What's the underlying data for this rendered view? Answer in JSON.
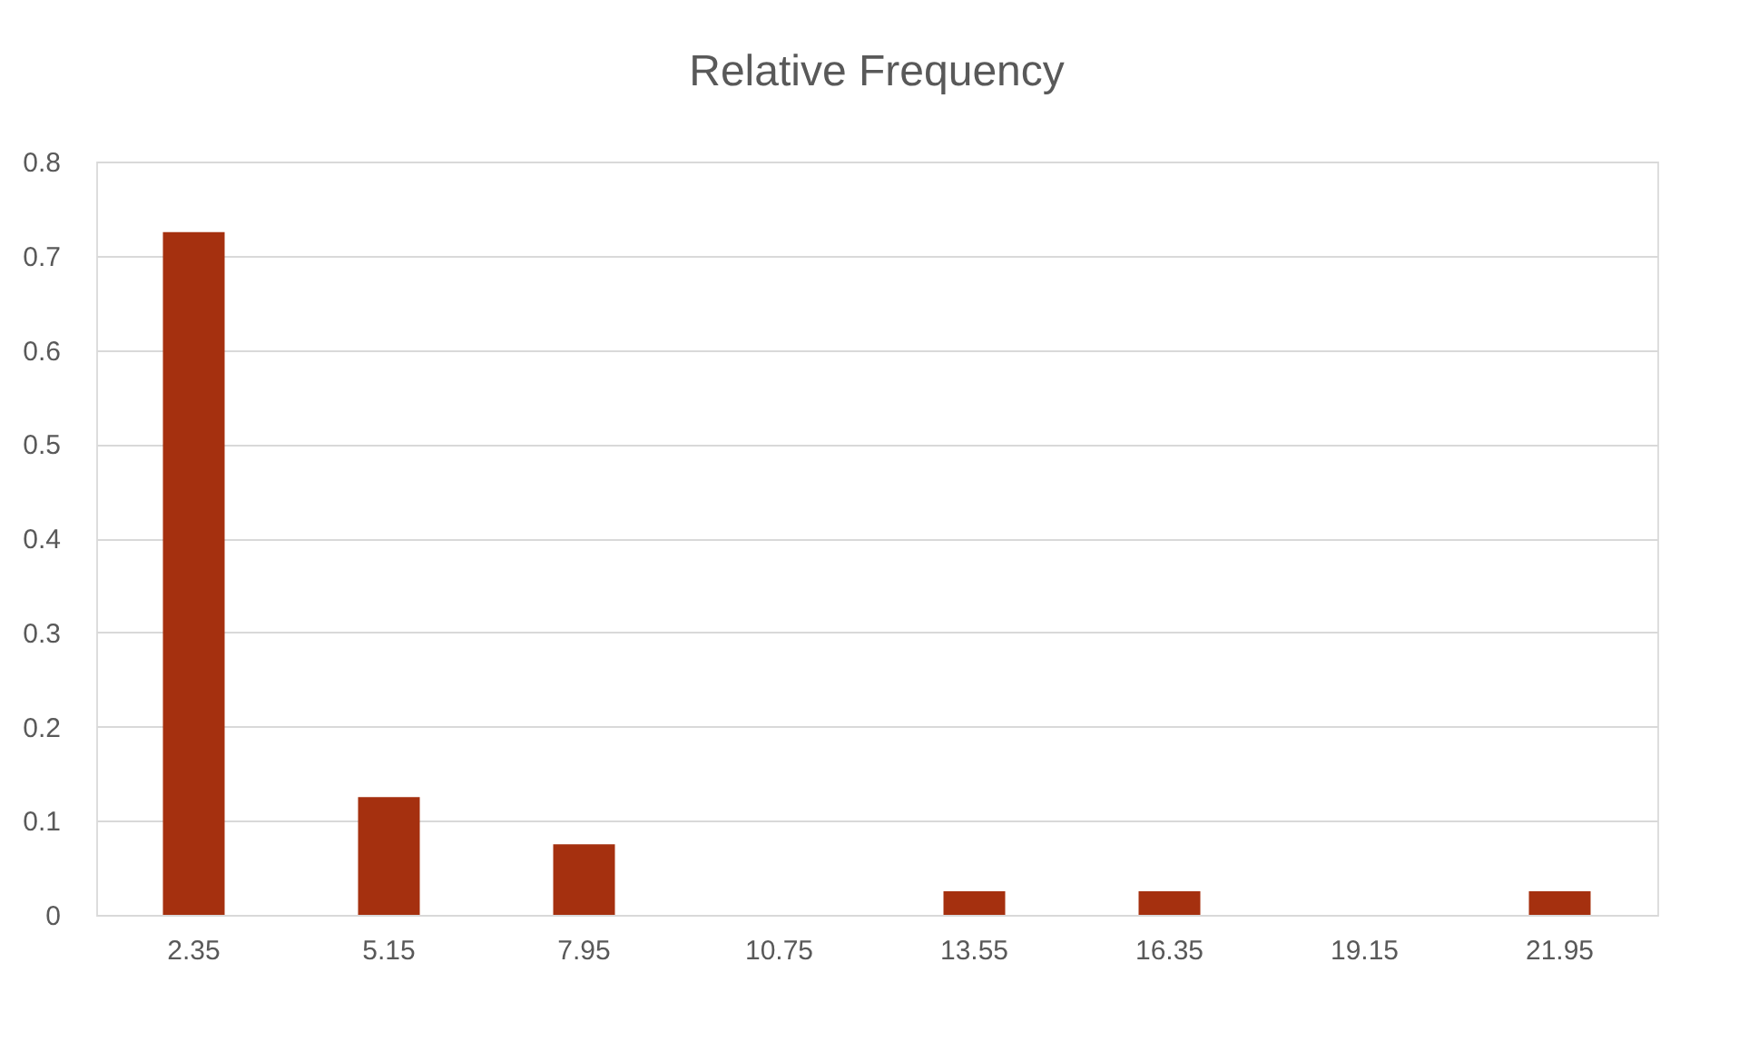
{
  "chart_data": {
    "type": "bar",
    "title": "Relative Frequency",
    "categories": [
      "2.35",
      "5.15",
      "7.95",
      "10.75",
      "13.55",
      "16.35",
      "19.15",
      "21.95"
    ],
    "values": [
      0.725,
      0.125,
      0.075,
      0,
      0.025,
      0.025,
      0,
      0.025
    ],
    "color": "#a5300f",
    "ylim": [
      0,
      0.8
    ],
    "yticks": [
      0,
      0.1,
      0.2,
      0.3,
      0.4,
      0.5,
      0.6,
      0.7,
      0.8
    ],
    "grid": "y"
  }
}
